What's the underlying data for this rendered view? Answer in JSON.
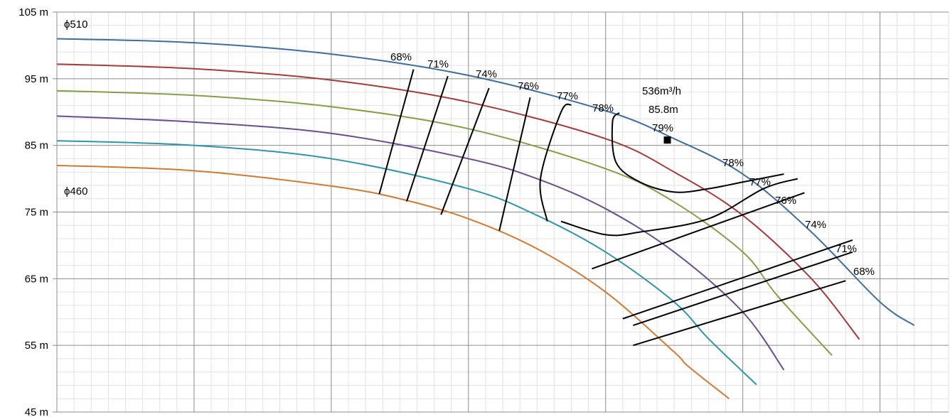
{
  "chart_data": {
    "type": "line",
    "title": "",
    "xlabel": "",
    "ylabel": "",
    "ylim": [
      45,
      105
    ],
    "y_ticks": [
      "105 m",
      "95 m",
      "85 m",
      "75 m",
      "65 m",
      "55 m",
      "45 m"
    ],
    "x_ticks_labeled": false,
    "grid": true,
    "legend": "none",
    "series": [
      {
        "color": "#3e6e9e",
        "points": [
          [
            0,
            101.0
          ],
          [
            2,
            100.4
          ],
          [
            4,
            98.7
          ],
          [
            6,
            95.5
          ],
          [
            8,
            90.2
          ],
          [
            9,
            86.0
          ],
          [
            10,
            80.7
          ],
          [
            11,
            72.0
          ],
          [
            12,
            61.5
          ],
          [
            12.5,
            58.0
          ]
        ]
      },
      {
        "color": "#a33c3a",
        "points": [
          [
            0,
            97.2
          ],
          [
            2,
            96.5
          ],
          [
            4,
            94.8
          ],
          [
            6,
            91.5
          ],
          [
            8,
            86.0
          ],
          [
            9,
            81.0
          ],
          [
            10,
            74.5
          ],
          [
            11,
            65.0
          ],
          [
            11.7,
            55.9
          ]
        ]
      },
      {
        "color": "#84a046",
        "points": [
          [
            0,
            93.2
          ],
          [
            2,
            92.5
          ],
          [
            4,
            90.8
          ],
          [
            6,
            87.5
          ],
          [
            8,
            81.5
          ],
          [
            9,
            76.5
          ],
          [
            10,
            69.0
          ],
          [
            10.5,
            62.5
          ],
          [
            11.3,
            53.5
          ]
        ]
      },
      {
        "color": "#6a4f8c",
        "points": [
          [
            0,
            89.4
          ],
          [
            2,
            88.5
          ],
          [
            4,
            86.8
          ],
          [
            6,
            83.0
          ],
          [
            7,
            80.0
          ],
          [
            8,
            75.5
          ],
          [
            9,
            69.0
          ],
          [
            10,
            60.0
          ],
          [
            10.6,
            51.3
          ]
        ]
      },
      {
        "color": "#2e96a8",
        "points": [
          [
            0,
            85.7
          ],
          [
            2,
            85.0
          ],
          [
            4,
            83.0
          ],
          [
            6,
            78.5
          ],
          [
            7,
            74.5
          ],
          [
            8,
            69.0
          ],
          [
            9,
            61.5
          ],
          [
            9.5,
            56.0
          ],
          [
            10.2,
            49.1
          ]
        ]
      },
      {
        "color": "#d07a34",
        "points": [
          [
            0,
            82.0
          ],
          [
            2,
            81.2
          ],
          [
            4,
            78.9
          ],
          [
            5,
            77.0
          ],
          [
            6,
            74.0
          ],
          [
            7,
            69.5
          ],
          [
            8,
            63.0
          ],
          [
            9,
            54.0
          ],
          [
            9.2,
            51.9
          ],
          [
            9.8,
            47.0
          ]
        ]
      }
    ],
    "efficiency_lines": [
      {
        "points": [
          [
            5.2,
            96.4
          ],
          [
            4.7,
            77.7
          ]
        ]
      },
      {
        "points": [
          [
            5.7,
            95.4
          ],
          [
            5.1,
            76.6
          ]
        ]
      },
      {
        "points": [
          [
            6.3,
            93.6
          ],
          [
            5.6,
            74.6
          ]
        ]
      },
      {
        "points": [
          [
            6.9,
            92.2
          ],
          [
            6.45,
            72.2
          ]
        ]
      },
      {
        "points": [
          [
            7.5,
            91.1
          ],
          [
            7.35,
            90.0
          ],
          [
            7.05,
            80.0
          ],
          [
            7.15,
            73.6
          ]
        ]
      },
      {
        "points": [
          [
            8.2,
            89.9
          ],
          [
            8.1,
            88.5
          ],
          [
            8.15,
            82.5
          ],
          [
            8.5,
            79.5
          ],
          [
            9.0,
            78.0
          ],
          [
            9.5,
            78.5
          ],
          [
            10.0,
            79.5
          ],
          [
            10.6,
            80.7
          ]
        ]
      },
      {
        "points": [
          [
            7.35,
            73.6
          ],
          [
            8.0,
            71.6
          ],
          [
            8.5,
            72.0
          ],
          [
            9.5,
            74.0
          ],
          [
            10.3,
            78.5
          ],
          [
            10.8,
            80.0
          ]
        ]
      },
      {
        "points": [
          [
            7.8,
            66.5
          ],
          [
            10.9,
            77.9
          ]
        ]
      },
      {
        "points": [
          [
            8.25,
            59.0
          ],
          [
            11.6,
            70.8
          ]
        ]
      },
      {
        "points": [
          [
            8.4,
            58.0
          ],
          [
            11.6,
            69.0
          ]
        ]
      },
      {
        "points": [
          [
            8.4,
            55.0
          ],
          [
            11.5,
            64.7
          ]
        ]
      }
    ],
    "annotations": [
      {
        "text": "ϕ510"
      },
      {
        "text": "ϕ460"
      },
      {
        "text": "68%"
      },
      {
        "text": "71%"
      },
      {
        "text": "74%"
      },
      {
        "text": "76%"
      },
      {
        "text": "77%"
      },
      {
        "text": "78%"
      },
      {
        "text": "536m³/h"
      },
      {
        "text": "85.8m"
      },
      {
        "text": "79%"
      },
      {
        "text": "78%"
      },
      {
        "text": "77%"
      },
      {
        "text": "76%"
      },
      {
        "text": "74%"
      },
      {
        "text": "71%"
      },
      {
        "text": "68%"
      }
    ],
    "duty_point": {
      "x": 8.9,
      "y": 85.8
    }
  }
}
